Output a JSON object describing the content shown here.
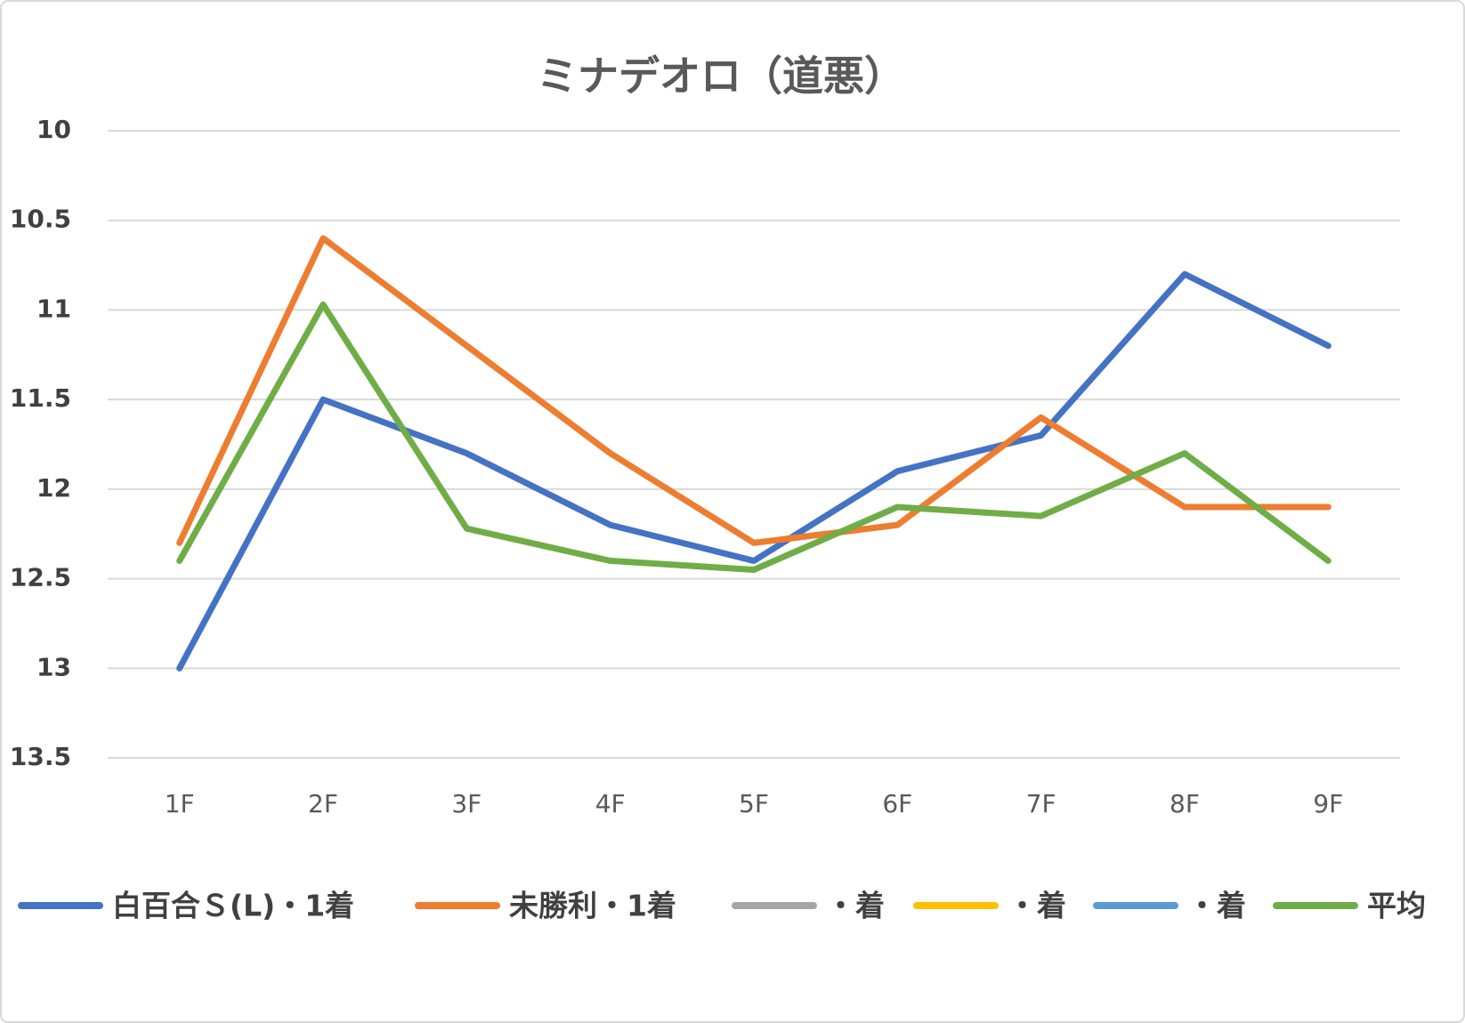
{
  "chart_data": {
    "type": "line",
    "title": "ミナデオロ（道悪）",
    "categories": [
      "1F",
      "2F",
      "3F",
      "4F",
      "5F",
      "6F",
      "7F",
      "8F",
      "9F"
    ],
    "series": [
      {
        "name": "白百合Ｓ(L)・1着",
        "color": "#4472c4",
        "values": [
          13.0,
          11.5,
          11.8,
          12.2,
          12.4,
          11.9,
          11.7,
          10.8,
          11.2
        ]
      },
      {
        "name": "未勝利・1着",
        "color": "#ed7d31",
        "values": [
          12.3,
          10.6,
          11.2,
          11.8,
          12.3,
          12.2,
          11.6,
          12.1,
          12.1
        ]
      },
      {
        "name": "・着",
        "color": "#a5a5a5",
        "values": [
          null,
          null,
          null,
          null,
          null,
          null,
          null,
          null,
          null
        ]
      },
      {
        "name": "・着",
        "color": "#ffc000",
        "values": [
          null,
          null,
          null,
          null,
          null,
          null,
          null,
          null,
          null
        ]
      },
      {
        "name": "・着",
        "color": "#5b9bd5",
        "values": [
          null,
          null,
          null,
          null,
          null,
          null,
          null,
          null,
          null
        ]
      },
      {
        "name": "平均",
        "color": "#70ad47",
        "values": [
          12.4,
          10.97,
          12.22,
          12.4,
          12.45,
          12.1,
          12.15,
          11.8,
          12.4
        ]
      }
    ],
    "ylim": [
      10,
      13.5
    ],
    "yticks": [
      10,
      10.5,
      11,
      11.5,
      12,
      12.5,
      13,
      13.5
    ],
    "y_reversed": true,
    "grid": true,
    "legend": "bottom"
  }
}
